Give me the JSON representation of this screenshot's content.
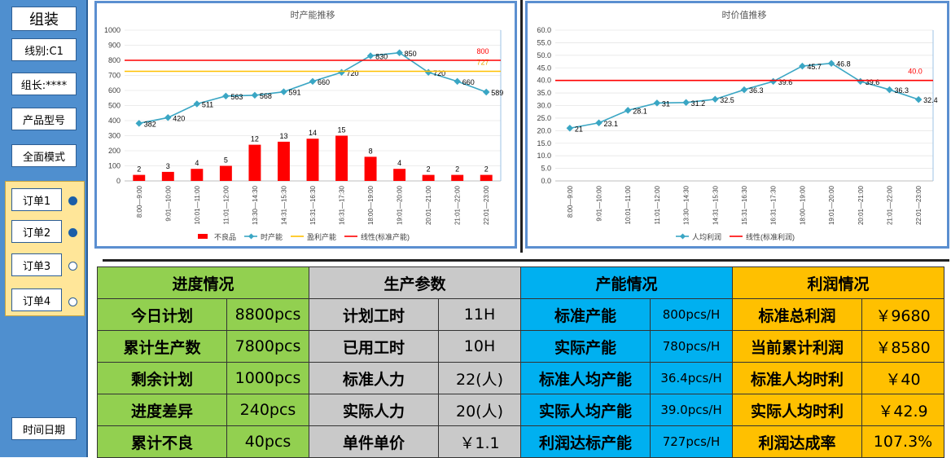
{
  "sidebar": {
    "title": "组装",
    "line": "线别:C1",
    "leader": "组长:****",
    "product": "产品型号",
    "mode": "全面模式",
    "orders": [
      "订单1",
      "订单2",
      "订单3",
      "订单4"
    ],
    "datetime": "时间日期"
  },
  "chart_data": [
    {
      "type": "bar",
      "title": "时产能推移",
      "categories": [
        "8:00—9:00",
        "9:01—10:00",
        "10:01—11:00",
        "11:01—12:00",
        "13:30—14:30",
        "14:31—15:30",
        "15:31—16:30",
        "16:31—17:30",
        "18:00—19:00",
        "19:01—20:00",
        "20:01—21:00",
        "21:01—22:00",
        "22:01—23:00"
      ],
      "ylim": [
        0,
        1000
      ],
      "yticks": [
        0,
        100,
        200,
        300,
        400,
        500,
        600,
        700,
        800,
        900,
        1000
      ],
      "series": [
        {
          "name": "不良品",
          "kind": "bar",
          "color": "#ff0000",
          "values": [
            2,
            3,
            4,
            5,
            12,
            13,
            14,
            15,
            8,
            4,
            2,
            2,
            2
          ]
        },
        {
          "name": "时产能",
          "kind": "line",
          "color": "#3aa6c4",
          "values": [
            382,
            420,
            511,
            563,
            568,
            591,
            660,
            720,
            830,
            850,
            720,
            660,
            589
          ]
        },
        {
          "name": "盈利产能",
          "kind": "hline",
          "color": "#ffc000",
          "value": 727,
          "label": "727"
        },
        {
          "name": "线性(标准产能)",
          "kind": "hline",
          "color": "#ff0000",
          "value": 800,
          "label": "800"
        }
      ],
      "legend": "bottom"
    },
    {
      "type": "line",
      "title": "时价值推移",
      "categories": [
        "8:00—9:00",
        "9:01—10:00",
        "10:01—11:00",
        "11:01—12:00",
        "13:30—14:30",
        "14:31—15:30",
        "15:31—16:30",
        "16:31—17:30",
        "18:00—19:00",
        "19:01—20:00",
        "20:01—21:00",
        "21:01—22:00",
        "22:01—23:00"
      ],
      "ylim": [
        0,
        60
      ],
      "yticks": [
        "0.0",
        "5.0",
        "10.0",
        "15.0",
        "20.0",
        "25.0",
        "30.0",
        "35.0",
        "40.0",
        "45.0",
        "50.0",
        "55.0",
        "60.0"
      ],
      "series": [
        {
          "name": "人均利润",
          "kind": "line",
          "color": "#3aa6c4",
          "values": [
            21.0,
            23.1,
            28.1,
            31.0,
            31.2,
            32.5,
            36.3,
            39.6,
            45.7,
            46.8,
            39.6,
            36.3,
            32.4
          ]
        },
        {
          "name": "线性(标准利润)",
          "kind": "hline",
          "color": "#ff0000",
          "value": 40.0,
          "label": "40.0"
        }
      ],
      "legend": "bottom"
    }
  ],
  "table": {
    "headers": [
      "进度情况",
      "生产参数",
      "产能情况",
      "利润情况"
    ],
    "rows": [
      [
        "今日计划",
        "8800pcs",
        "计划工时",
        "11H",
        "标准产能",
        "800pcs/H",
        "标准总利润",
        "￥9680"
      ],
      [
        "累计生产数",
        "7800pcs",
        "已用工时",
        "10H",
        "实际产能",
        "780pcs/H",
        "当前累计利润",
        "￥8580"
      ],
      [
        "剩余计划",
        "1000pcs",
        "标准人力",
        "22(人)",
        "标准人均产能",
        "36.4pcs/H",
        "标准人均时利",
        "￥40"
      ],
      [
        "进度差异",
        "240pcs",
        "实际人力",
        "20(人)",
        "实际人均产能",
        "39.0pcs/H",
        "实际人均时利",
        "￥42.9"
      ],
      [
        "累计不良",
        "40pcs",
        "单件单价",
        "￥1.1",
        "利润达标产能",
        "727pcs/H",
        "利润达成率",
        "107.3%"
      ]
    ]
  }
}
